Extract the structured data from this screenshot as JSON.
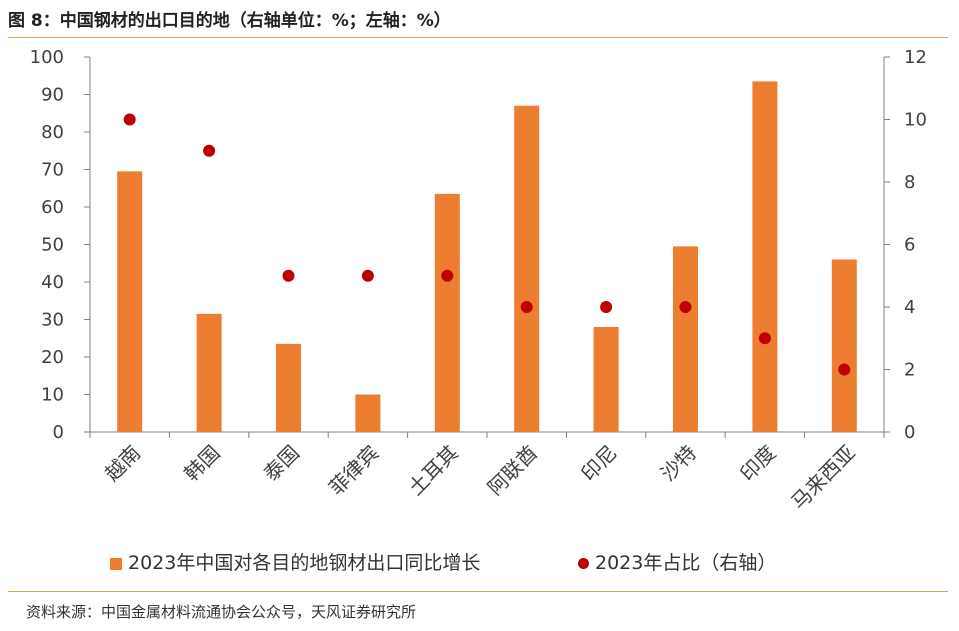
{
  "title": "图 8：中国钢材的出口目的地（右轴单位：%；左轴：%）",
  "source": "资料来源：中国金属材料流通协会公众号，天风证券研究所",
  "colors": {
    "bar": "#ed7d31",
    "dot": "#c00000",
    "rule": "#e0a060"
  },
  "chart_data": {
    "type": "bar",
    "categories": [
      "越南",
      "韩国",
      "泰国",
      "菲律宾",
      "土耳其",
      "阿联酋",
      "印尼",
      "沙特",
      "印度",
      "马来西亚"
    ],
    "series": [
      {
        "name": "2023年中国对各目的地钢材出口同比增长",
        "axis": "left",
        "kind": "bar",
        "values": [
          69.5,
          31.5,
          23.5,
          10,
          63.5,
          87,
          28,
          49.5,
          93.5,
          46
        ]
      },
      {
        "name": "2023年占比（右轴）",
        "axis": "right",
        "kind": "scatter",
        "values": [
          10,
          9,
          5,
          5,
          5,
          4,
          4,
          4,
          3,
          2
        ]
      }
    ],
    "y_left": {
      "min": 0,
      "max": 100,
      "step": 10,
      "ticks": [
        "0",
        "10",
        "20",
        "30",
        "40",
        "50",
        "60",
        "70",
        "80",
        "90",
        "100"
      ]
    },
    "y_right": {
      "min": 0,
      "max": 12,
      "step": 2,
      "ticks": [
        "0",
        "2",
        "4",
        "6",
        "8",
        "10",
        "12"
      ]
    },
    "legend": [
      "2023年中国对各目的地钢材出口同比增长",
      "2023年占比（右轴）"
    ],
    "legend_position": "bottom"
  }
}
